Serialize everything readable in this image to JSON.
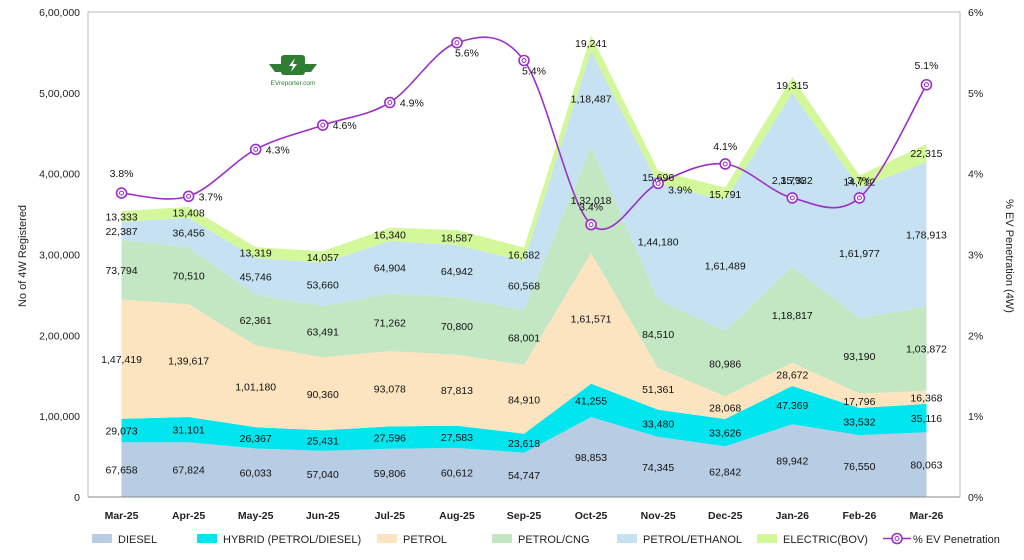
{
  "chart_data": {
    "type": "area",
    "stacked": true,
    "logo_text": "EVreporter.com",
    "categories": [
      "Mar-25",
      "Apr-25",
      "May-25",
      "Jun-25",
      "Jul-25",
      "Aug-25",
      "Sep-25",
      "Oct-25",
      "Nov-25",
      "Dec-25",
      "Jan-26",
      "Feb-26",
      "Mar-26"
    ],
    "ylabel": "No of 4W Registered",
    "y2label": "% EV Penetration (4W)",
    "ylim": [
      0,
      600000
    ],
    "y2lim": [
      0,
      6
    ],
    "yticks": [
      "0",
      "1,00,000",
      "2,00,000",
      "3,00,000",
      "4,00,000",
      "5,00,000",
      "6,00,000"
    ],
    "y2ticks": [
      "0%",
      "1%",
      "2%",
      "3%",
      "4%",
      "5%",
      "6%"
    ],
    "series": [
      {
        "name": "DIESEL",
        "color": "#b8cce4",
        "values": [
          67658,
          67824,
          60033,
          57040,
          59806,
          60612,
          54747,
          98853,
          74345,
          62842,
          89942,
          76550,
          80063
        ],
        "labels": [
          "67,658",
          "67,824",
          "60,033",
          "57,040",
          "59,806",
          "60,612",
          "54,747",
          "98,853",
          "74,345",
          "62,842",
          "89,942",
          "76,550",
          "80,063"
        ]
      },
      {
        "name": "HYBRID (PETROL/DIESEL)",
        "color": "#00e5ee",
        "values": [
          29073,
          31101,
          26367,
          25431,
          27596,
          27583,
          23618,
          41255,
          33480,
          33626,
          47369,
          33532,
          35116
        ],
        "labels": [
          "29,073",
          "31,101",
          "26,367",
          "25,431",
          "27,596",
          "27,583",
          "23,618",
          "41,255",
          "33,480",
          "33,626",
          "47,369",
          "33,532",
          "35,116"
        ]
      },
      {
        "name": "PETROL",
        "color": "#fce4c0",
        "values": [
          147419,
          139617,
          101180,
          90360,
          93078,
          87813,
          84910,
          161571,
          51361,
          28068,
          28672,
          17796,
          16368
        ],
        "labels": [
          "1,47,419",
          "1,39,617",
          "1,01,180",
          "90,360",
          "93,078",
          "87,813",
          "84,910",
          "1,61,571",
          "51,361",
          "28,068",
          "28,672",
          "17,796",
          "16,368"
        ]
      },
      {
        "name": "PETROL/CNG",
        "color": "#c3e6c3",
        "values": [
          73794,
          70510,
          62361,
          63491,
          71262,
          70800,
          68001,
          132018,
          84510,
          80986,
          118817,
          93190,
          103872
        ],
        "labels": [
          "73,794",
          "70,510",
          "62,361",
          "63,491",
          "71,262",
          "70,800",
          "68,001",
          "1,32,018",
          "84,510",
          "80,986",
          "1,18,817",
          "93,190",
          "1,03,872"
        ]
      },
      {
        "name": "PETROL/ETHANOL",
        "color": "#c6e2f2",
        "values": [
          22387,
          36456,
          45746,
          53660,
          64904,
          64942,
          60568,
          118487,
          144180,
          161489,
          215332,
          161977,
          178913
        ],
        "labels": [
          "22,387",
          "36,456",
          "45,746",
          "53,660",
          "64,904",
          "64,942",
          "60,568",
          "1,18,487",
          "1,44,180",
          "1,61,489",
          "2,15,332",
          "1,61,977",
          "1,78,913"
        ]
      },
      {
        "name": "ELECTRIC(BOV)",
        "color": "#d2f89a",
        "values": [
          13333,
          13408,
          13319,
          14057,
          16340,
          18587,
          16682,
          19241,
          15696,
          15791,
          19315,
          14712,
          22315
        ],
        "labels": [
          "13,333",
          "13,408",
          "13,319",
          "14,057",
          "16,340",
          "18,587",
          "16,682",
          "19,241",
          "15,696",
          "15,791",
          "19,315",
          "14,712",
          "22,315"
        ]
      }
    ],
    "line_series": {
      "name": "% EV Penetration",
      "color": "#9b30c8",
      "values": [
        3.76,
        3.72,
        4.3,
        4.6,
        4.88,
        5.62,
        5.4,
        3.37,
        3.88,
        4.12,
        3.7,
        3.7,
        5.1
      ],
      "labels": [
        "3.8%",
        "3.7%",
        "4.3%",
        "4.6%",
        "4.9%",
        "5.6%",
        "5.4%",
        "3.4%",
        "3.9%",
        "4.1%",
        "3.7%",
        "3.7%",
        "5.1%"
      ]
    }
  }
}
